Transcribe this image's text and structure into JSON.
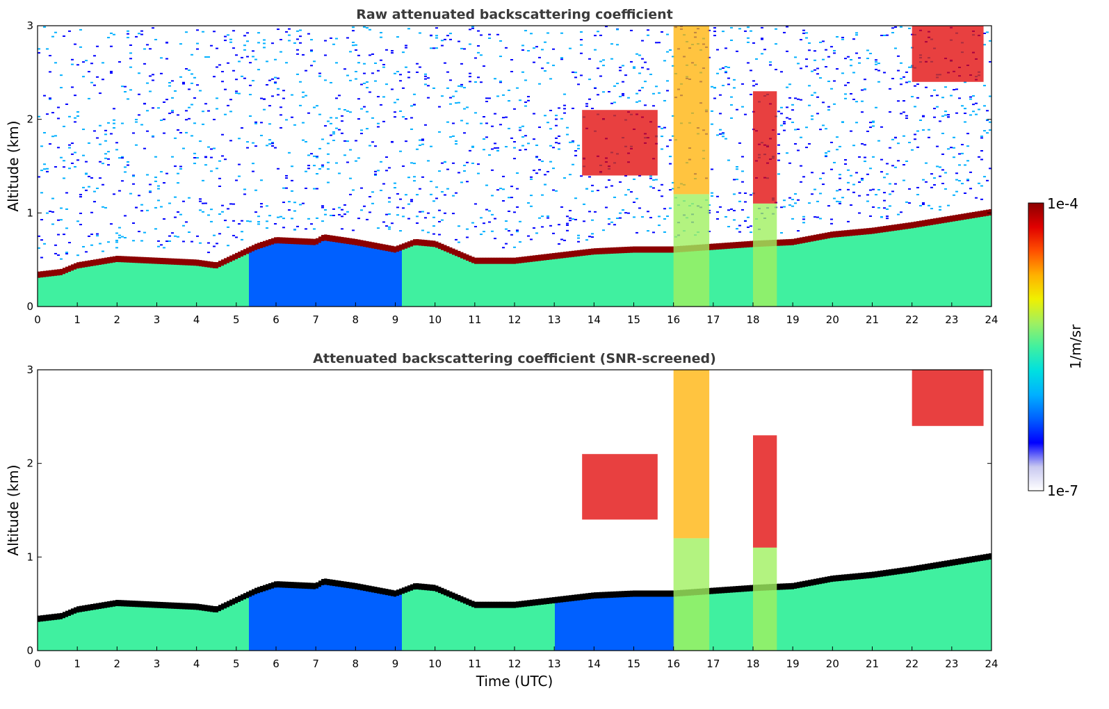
{
  "colormap": [
    "#ffffff",
    "#c8c8f0",
    "#0000ff",
    "#0060ff",
    "#00b0ff",
    "#00e0e0",
    "#40f0a0",
    "#a0f060",
    "#f0f000",
    "#ffb000",
    "#ff5000",
    "#e00000",
    "#8b0000"
  ],
  "colorbar": {
    "label": "1/m/sr",
    "max_label": "1e-4",
    "min_label": "1e-7"
  },
  "chart_data": [
    {
      "type": "heatmap",
      "title": "Raw attenuated backscattering coefficient",
      "xlabel": "",
      "ylabel": "Altitude (km)",
      "xlim": [
        0,
        24
      ],
      "ylim": [
        0,
        3
      ],
      "x_ticks": [
        "0",
        "1",
        "2",
        "3",
        "4",
        "5",
        "6",
        "7",
        "8",
        "9",
        "10",
        "11",
        "12",
        "13",
        "14",
        "15",
        "16",
        "17",
        "18",
        "19",
        "20",
        "21",
        "22",
        "23",
        "24"
      ],
      "y_ticks": [
        "0",
        "1",
        "2",
        "3"
      ],
      "screened": false,
      "layer_top_km": [
        [
          0,
          0.35
        ],
        [
          0.6,
          0.38
        ],
        [
          1,
          0.45
        ],
        [
          2,
          0.52
        ],
        [
          3,
          0.5
        ],
        [
          4,
          0.48
        ],
        [
          4.5,
          0.45
        ],
        [
          5,
          0.55
        ],
        [
          5.5,
          0.65
        ],
        [
          6,
          0.72
        ],
        [
          7,
          0.7
        ],
        [
          7.2,
          0.75
        ],
        [
          8,
          0.7
        ],
        [
          9,
          0.62
        ],
        [
          9.5,
          0.7
        ],
        [
          10,
          0.68
        ],
        [
          11,
          0.5
        ],
        [
          12,
          0.5
        ],
        [
          13,
          0.55
        ],
        [
          14,
          0.6
        ],
        [
          15,
          0.62
        ],
        [
          16,
          0.62
        ],
        [
          17,
          0.65
        ],
        [
          18,
          0.68
        ],
        [
          19,
          0.7
        ],
        [
          20,
          0.78
        ],
        [
          21,
          0.82
        ],
        [
          22,
          0.88
        ],
        [
          23,
          0.95
        ],
        [
          24,
          1.02
        ]
      ],
      "cloud_cases": [
        {
          "t0": 13.7,
          "t1": 15.6,
          "z0": 1.4,
          "z1": 2.1
        },
        {
          "t0": 16.0,
          "t1": 16.9,
          "z0": 1.2,
          "z1": 3.0
        },
        {
          "t0": 18.0,
          "t1": 18.6,
          "z0": 1.1,
          "z1": 2.3
        },
        {
          "t0": 22.0,
          "t1": 23.8,
          "z0": 2.4,
          "z1": 3.0
        }
      ]
    },
    {
      "type": "heatmap",
      "title": "Attenuated backscattering coefficient (SNR-screened)",
      "xlabel": "Time (UTC)",
      "ylabel": "Altitude (km)",
      "xlim": [
        0,
        24
      ],
      "ylim": [
        0,
        3
      ],
      "x_ticks": [
        "0",
        "1",
        "2",
        "3",
        "4",
        "5",
        "6",
        "7",
        "8",
        "9",
        "10",
        "11",
        "12",
        "13",
        "14",
        "15",
        "16",
        "17",
        "18",
        "19",
        "20",
        "21",
        "22",
        "23",
        "24"
      ],
      "y_ticks": [
        "0",
        "1",
        "2",
        "3"
      ],
      "screened": true,
      "layer_top_km": [
        [
          0,
          0.35
        ],
        [
          0.6,
          0.38
        ],
        [
          1,
          0.45
        ],
        [
          2,
          0.52
        ],
        [
          3,
          0.5
        ],
        [
          4,
          0.48
        ],
        [
          4.5,
          0.45
        ],
        [
          5,
          0.55
        ],
        [
          5.5,
          0.65
        ],
        [
          6,
          0.72
        ],
        [
          7,
          0.7
        ],
        [
          7.2,
          0.75
        ],
        [
          8,
          0.7
        ],
        [
          9,
          0.62
        ],
        [
          9.5,
          0.7
        ],
        [
          10,
          0.68
        ],
        [
          11,
          0.5
        ],
        [
          12,
          0.5
        ],
        [
          13,
          0.55
        ],
        [
          14,
          0.6
        ],
        [
          15,
          0.62
        ],
        [
          16,
          0.62
        ],
        [
          17,
          0.65
        ],
        [
          18,
          0.68
        ],
        [
          19,
          0.7
        ],
        [
          20,
          0.78
        ],
        [
          21,
          0.82
        ],
        [
          22,
          0.88
        ],
        [
          23,
          0.95
        ],
        [
          24,
          1.02
        ]
      ],
      "cloud_cases": [
        {
          "t0": 13.7,
          "t1": 15.6,
          "z0": 1.4,
          "z1": 2.1
        },
        {
          "t0": 16.0,
          "t1": 16.9,
          "z0": 1.2,
          "z1": 3.0
        },
        {
          "t0": 18.0,
          "t1": 18.6,
          "z0": 1.1,
          "z1": 2.3
        },
        {
          "t0": 22.0,
          "t1": 23.8,
          "z0": 2.4,
          "z1": 3.0
        }
      ]
    }
  ]
}
